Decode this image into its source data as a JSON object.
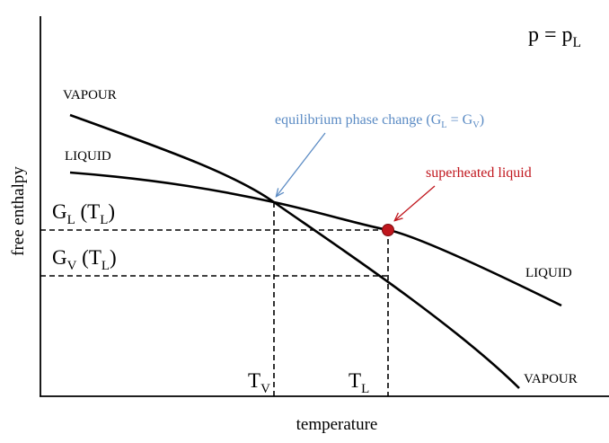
{
  "pressure": {
    "parts": [
      {
        "text": "p = p"
      },
      {
        "text": "L",
        "sub": true
      }
    ]
  },
  "vapour_left": {
    "parts": [
      {
        "text": "VAPOUR"
      }
    ]
  },
  "liquid_left": {
    "parts": [
      {
        "text": "LIQUID"
      }
    ]
  },
  "equilibrium": {
    "parts": [
      {
        "text": "equilibrium phase change (G"
      },
      {
        "text": "L",
        "sub": true
      },
      {
        "text": " = G"
      },
      {
        "text": "V",
        "sub": true
      },
      {
        "text": ")"
      }
    ]
  },
  "superheated": {
    "parts": [
      {
        "text": "superheated liquid"
      }
    ]
  },
  "gl_tl": {
    "parts": [
      {
        "text": "G"
      },
      {
        "text": "L",
        "sub": true
      },
      {
        "text": " (T"
      },
      {
        "text": "L",
        "sub": true
      },
      {
        "text": ")"
      }
    ]
  },
  "gv_tl": {
    "parts": [
      {
        "text": "G"
      },
      {
        "text": "V",
        "sub": true
      },
      {
        "text": " (T"
      },
      {
        "text": "L",
        "sub": true
      },
      {
        "text": ")"
      }
    ]
  },
  "liquid_right": {
    "parts": [
      {
        "text": "LIQUID"
      }
    ]
  },
  "vapour_right": {
    "parts": [
      {
        "text": "VAPOUR"
      }
    ]
  },
  "tv": {
    "parts": [
      {
        "text": "T"
      },
      {
        "text": "V",
        "sub": true
      }
    ]
  },
  "tl": {
    "parts": [
      {
        "text": "T"
      },
      {
        "text": "L",
        "sub": true
      }
    ]
  },
  "x_axis": {
    "parts": [
      {
        "text": "temperature"
      }
    ]
  },
  "y_axis": {
    "parts": [
      {
        "text": "free enthalpy"
      }
    ]
  }
}
